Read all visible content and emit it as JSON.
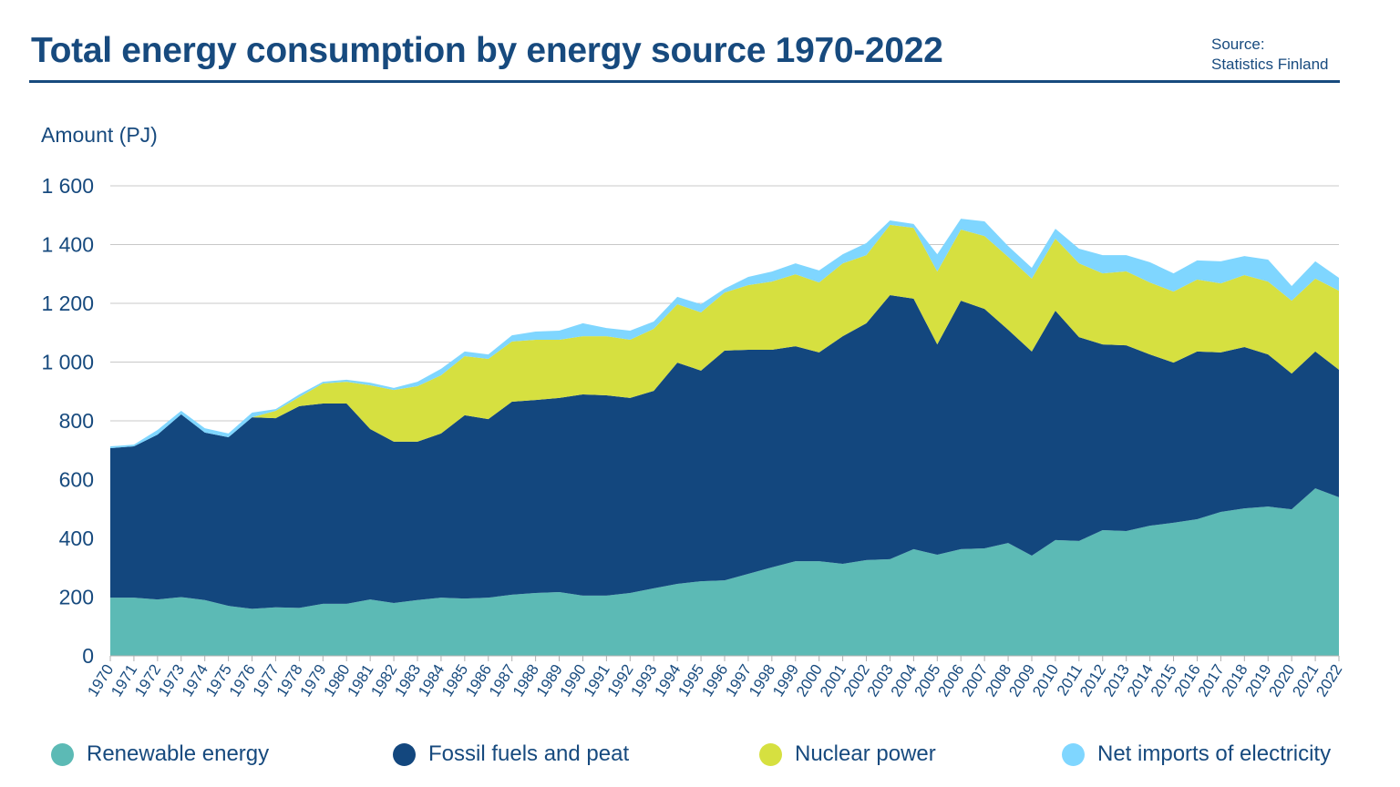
{
  "title": "Total energy consumption by energy source 1970-2022",
  "source": {
    "label": "Source:",
    "name": "Statistics Finland"
  },
  "chart_data": {
    "type": "area",
    "stacked": true,
    "title": "Total energy consumption by energy source 1970-2022",
    "ylabel": "Amount (PJ)",
    "xlabel": "",
    "ylim": [
      0,
      1600
    ],
    "yticks": [
      0,
      200,
      400,
      600,
      800,
      1000,
      1200,
      1400,
      1600
    ],
    "ytick_labels": [
      "0",
      "200",
      "400",
      "600",
      "800",
      "1 000",
      "1 200",
      "1 400",
      "1 600"
    ],
    "grid": "horizontal",
    "legend": "bottom",
    "x": [
      1970,
      1971,
      1972,
      1973,
      1974,
      1975,
      1976,
      1977,
      1978,
      1979,
      1980,
      1981,
      1982,
      1983,
      1984,
      1985,
      1986,
      1987,
      1988,
      1989,
      1990,
      1991,
      1992,
      1993,
      1994,
      1995,
      1996,
      1997,
      1998,
      1999,
      2000,
      2001,
      2002,
      2003,
      2004,
      2005,
      2006,
      2007,
      2008,
      2009,
      2010,
      2011,
      2012,
      2013,
      2014,
      2015,
      2016,
      2017,
      2018,
      2019,
      2020,
      2021,
      2022
    ],
    "series": [
      {
        "name": "Renewable energy",
        "color": "#5cbab5",
        "values": [
          198,
          198,
          192,
          200,
          190,
          170,
          160,
          165,
          163,
          177,
          177,
          192,
          180,
          190,
          198,
          195,
          198,
          208,
          214,
          217,
          205,
          205,
          214,
          230,
          245,
          254,
          257,
          279,
          301,
          322,
          322,
          313,
          326,
          329,
          363,
          344,
          363,
          366,
          384,
          341,
          394,
          391,
          428,
          425,
          443,
          453,
          465,
          490,
          502,
          508,
          499,
          570,
          540
        ]
      },
      {
        "name": "Fossil fuels and peat",
        "color": "#13477e",
        "values": [
          509,
          515,
          561,
          622,
          570,
          574,
          652,
          644,
          687,
          682,
          682,
          580,
          549,
          539,
          559,
          624,
          608,
          657,
          657,
          661,
          685,
          682,
          664,
          672,
          753,
          717,
          782,
          763,
          741,
          732,
          711,
          775,
          806,
          899,
          853,
          716,
          846,
          815,
          726,
          695,
          781,
          694,
          632,
          632,
          583,
          545,
          571,
          543,
          549,
          518,
          462,
          466,
          434
        ]
      },
      {
        "name": "Nuclear power",
        "color": "#d6e040",
        "values": [
          0,
          0,
          0,
          0,
          0,
          0,
          0,
          25,
          31,
          68,
          74,
          149,
          176,
          189,
          198,
          201,
          205,
          205,
          205,
          198,
          198,
          201,
          198,
          211,
          199,
          198,
          198,
          220,
          232,
          245,
          238,
          248,
          232,
          239,
          241,
          248,
          242,
          248,
          248,
          248,
          245,
          251,
          242,
          252,
          245,
          242,
          245,
          235,
          245,
          248,
          248,
          248,
          269
        ]
      },
      {
        "name": "Net imports of electricity",
        "color": "#7fd6ff",
        "values": [
          6,
          6,
          16,
          12,
          15,
          13,
          16,
          6,
          9,
          6,
          7,
          9,
          7,
          15,
          22,
          16,
          15,
          21,
          28,
          31,
          44,
          28,
          31,
          25,
          25,
          28,
          13,
          28,
          34,
          37,
          41,
          31,
          41,
          15,
          13,
          59,
          37,
          50,
          37,
          37,
          34,
          50,
          62,
          55,
          69,
          62,
          65,
          75,
          65,
          75,
          50,
          59,
          44
        ]
      }
    ]
  }
}
